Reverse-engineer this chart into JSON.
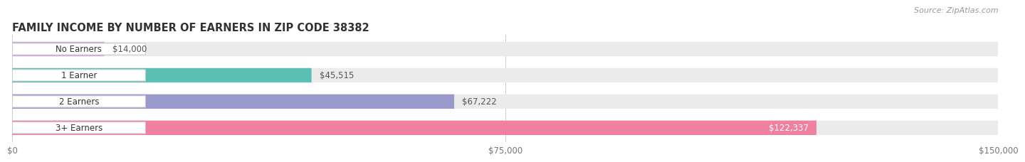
{
  "title": "FAMILY INCOME BY NUMBER OF EARNERS IN ZIP CODE 38382",
  "source": "Source: ZipAtlas.com",
  "categories": [
    "No Earners",
    "1 Earner",
    "2 Earners",
    "3+ Earners"
  ],
  "values": [
    14000,
    45515,
    67222,
    122337
  ],
  "labels": [
    "$14,000",
    "$45,515",
    "$67,222",
    "$122,337"
  ],
  "bar_colors": [
    "#c9a8d4",
    "#5bbfb5",
    "#9999cc",
    "#f080a0"
  ],
  "bar_bg_color": "#ebebeb",
  "background_color": "#ffffff",
  "xmax": 150000,
  "xtick_labels": [
    "$0",
    "$75,000",
    "$150,000"
  ],
  "title_fontsize": 10.5,
  "label_fontsize": 8.5,
  "source_fontsize": 8,
  "category_fontsize": 8.5
}
